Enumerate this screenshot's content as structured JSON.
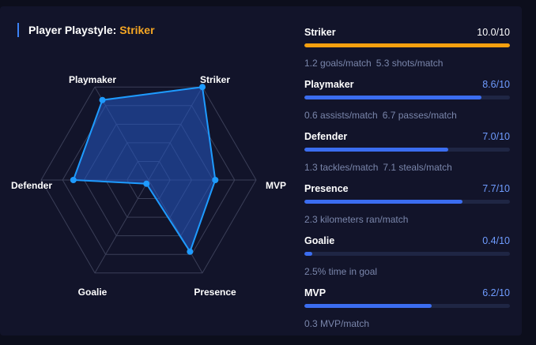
{
  "header": {
    "label": "Player Playstyle:",
    "playstyle": "Striker"
  },
  "colors": {
    "accent": "#f5a623",
    "primary_bar": "#f5a00f",
    "bar": "#3b6df0",
    "radar_stroke": "#1e9bff",
    "radar_fill": "#2457c5"
  },
  "chart_data": {
    "type": "radar",
    "max": 10,
    "axes": [
      "Striker",
      "MVP",
      "Presence",
      "Goalie",
      "Defender",
      "Playmaker"
    ],
    "values": [
      10.0,
      6.2,
      7.7,
      0.4,
      7.0,
      8.6
    ],
    "grid_rings": 5
  },
  "stats": [
    {
      "name": "Striker",
      "score": "10.0/10",
      "value": 10.0,
      "primary": true,
      "details": [
        "1.2 goals/match",
        "5.3 shots/match"
      ]
    },
    {
      "name": "Playmaker",
      "score": "8.6/10",
      "value": 8.6,
      "primary": false,
      "details": [
        "0.6 assists/match",
        "6.7 passes/match"
      ]
    },
    {
      "name": "Defender",
      "score": "7.0/10",
      "value": 7.0,
      "primary": false,
      "details": [
        "1.3 tackles/match",
        "7.1 steals/match"
      ]
    },
    {
      "name": "Presence",
      "score": "7.7/10",
      "value": 7.7,
      "primary": false,
      "details": [
        "2.3 kilometers ran/match"
      ]
    },
    {
      "name": "Goalie",
      "score": "0.4/10",
      "value": 0.4,
      "primary": false,
      "details": [
        "2.5% time in goal"
      ]
    },
    {
      "name": "MVP",
      "score": "6.2/10",
      "value": 6.2,
      "primary": false,
      "details": [
        "0.3 MVP/match"
      ]
    }
  ]
}
